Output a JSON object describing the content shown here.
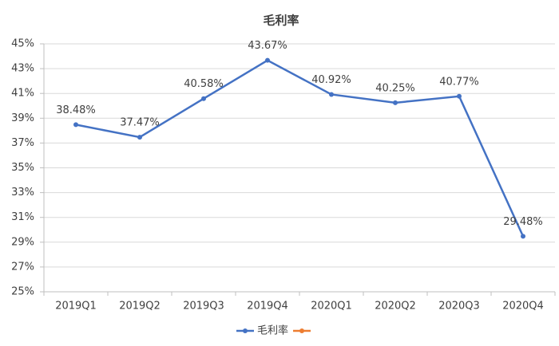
{
  "chart_data": {
    "type": "line",
    "title": "毛利率",
    "categories": [
      "2019Q1",
      "2019Q2",
      "2019Q3",
      "2019Q4",
      "2020Q1",
      "2020Q2",
      "2020Q3",
      "2020Q4"
    ],
    "series": [
      {
        "name": "毛利率",
        "color": "#4472c4",
        "values": [
          38.48,
          37.47,
          40.58,
          43.67,
          40.92,
          40.25,
          40.77,
          29.48
        ],
        "value_labels": [
          "38.48%",
          "37.47%",
          "40.58%",
          "43.67%",
          "40.92%",
          "40.25%",
          "40.77%",
          "29.48%"
        ]
      },
      {
        "color": "#ed7d31",
        "values": [
          null,
          null,
          null,
          null,
          null,
          null,
          null,
          null
        ]
      }
    ],
    "ylim": [
      25,
      45
    ],
    "yticks": [
      {
        "value": 25,
        "label": "25%"
      },
      {
        "value": 27,
        "label": "27%"
      },
      {
        "value": 29,
        "label": "29%"
      },
      {
        "value": 31,
        "label": "31%"
      },
      {
        "value": 33,
        "label": "33%"
      },
      {
        "value": 35,
        "label": "35%"
      },
      {
        "value": 37,
        "label": "37%"
      },
      {
        "value": 39,
        "label": "39%"
      },
      {
        "value": 41,
        "label": "41%"
      },
      {
        "value": 43,
        "label": "43%"
      },
      {
        "value": 45,
        "label": "45%"
      }
    ],
    "grid": true,
    "legend": "bottom"
  }
}
